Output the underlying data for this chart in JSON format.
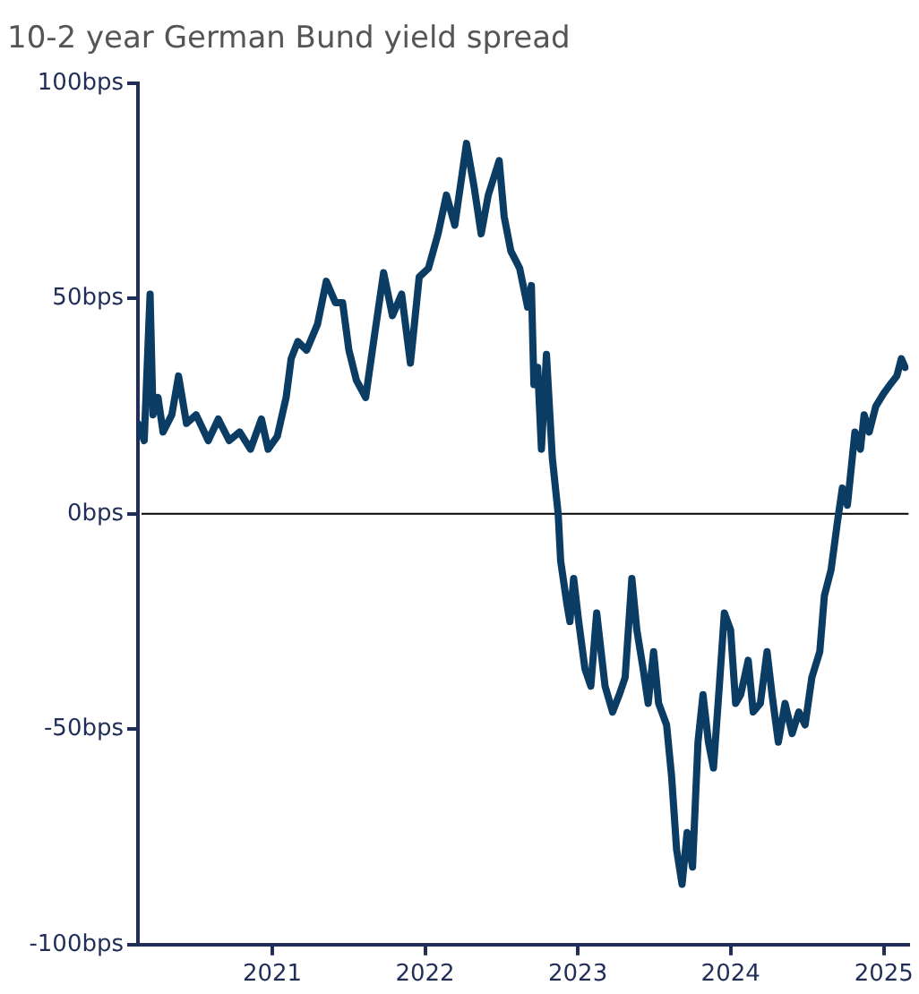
{
  "chart_data": {
    "type": "line",
    "title": "10-2 year German Bund yield spread",
    "x": [
      "2020-02-15",
      "2020-03-01",
      "2020-03-15",
      "2020-03-22",
      "2020-04-03",
      "2020-04-15",
      "2020-05-06",
      "2020-05-22",
      "2020-06-10",
      "2020-07-03",
      "2020-08-01",
      "2020-08-25",
      "2020-09-20",
      "2020-10-15",
      "2020-11-10",
      "2020-12-06",
      "2020-12-22",
      "2021-01-13",
      "2021-02-03",
      "2021-02-15",
      "2021-03-03",
      "2021-03-24",
      "2021-04-19",
      "2021-05-10",
      "2021-06-01",
      "2021-06-18",
      "2021-07-03",
      "2021-07-21",
      "2021-08-12",
      "2021-09-03",
      "2021-09-24",
      "2021-10-15",
      "2021-11-06",
      "2021-11-27",
      "2021-12-18",
      "2022-01-09",
      "2022-02-01",
      "2022-02-21",
      "2022-03-13",
      "2022-04-10",
      "2022-04-28",
      "2022-05-15",
      "2022-06-01",
      "2022-06-27",
      "2022-07-09",
      "2022-07-25",
      "2022-08-15",
      "2022-09-03",
      "2022-09-12",
      "2022-09-18",
      "2022-09-27",
      "2022-10-06",
      "2022-10-18",
      "2022-11-01",
      "2022-11-15",
      "2022-11-21",
      "2022-12-06",
      "2022-12-13",
      "2022-12-22",
      "2023-01-03",
      "2023-01-18",
      "2023-02-01",
      "2023-02-15",
      "2023-03-07",
      "2023-03-25",
      "2023-04-10",
      "2023-04-24",
      "2023-05-10",
      "2023-05-22",
      "2023-06-06",
      "2023-06-18",
      "2023-07-01",
      "2023-07-13",
      "2023-08-01",
      "2023-08-13",
      "2023-08-25",
      "2023-09-07",
      "2023-09-19",
      "2023-10-02",
      "2023-10-15",
      "2023-10-27",
      "2023-11-09",
      "2023-11-21",
      "2023-12-05",
      "2023-12-17",
      "2024-01-01",
      "2024-01-13",
      "2024-01-25",
      "2024-02-12",
      "2024-02-24",
      "2024-03-12",
      "2024-03-28",
      "2024-04-09",
      "2024-04-24",
      "2024-05-10",
      "2024-05-27",
      "2024-06-12",
      "2024-06-27",
      "2024-07-13",
      "2024-08-01",
      "2024-08-12",
      "2024-08-28",
      "2024-09-12",
      "2024-09-24",
      "2024-10-06",
      "2024-10-24",
      "2024-11-06",
      "2024-11-15",
      "2024-11-27",
      "2024-12-13",
      "2025-01-01",
      "2025-01-16",
      "2025-02-01",
      "2025-02-12",
      "2025-02-21"
    ],
    "series": [
      {
        "color": "#0b3c64",
        "values": [
          21,
          17,
          51,
          23,
          27,
          19,
          23,
          32,
          21,
          23,
          17,
          22,
          17,
          19,
          15,
          22,
          15,
          18,
          27,
          36,
          40,
          38,
          44,
          54,
          49,
          49,
          38,
          31,
          27,
          42,
          56,
          46,
          51,
          35,
          55,
          57,
          65,
          74,
          67,
          86,
          76,
          65,
          74,
          82,
          69,
          61,
          57,
          48,
          53,
          30,
          34,
          15,
          37,
          13,
          0,
          -11,
          -21,
          -25,
          -15,
          -25,
          -36,
          -40,
          -23,
          -40,
          -46,
          -42,
          -38,
          -15,
          -27,
          -36,
          -44,
          -32,
          -44,
          -49,
          -61,
          -78,
          -86,
          -74,
          -82,
          -53,
          -42,
          -53,
          -59,
          -40,
          -23,
          -27,
          -44,
          -42,
          -34,
          -46,
          -44,
          -32,
          -42,
          -53,
          -44,
          -51,
          -46,
          -49,
          -38,
          -32,
          -19,
          -13,
          -2,
          6,
          2,
          19,
          15,
          23,
          19,
          25,
          28,
          30,
          32,
          36,
          34
        ]
      }
    ],
    "xlim": [
      "2020-02-15",
      "2025-03-01"
    ],
    "xticks": [
      "2021",
      "2022",
      "2023",
      "2024",
      "2025"
    ],
    "ylim": [
      -100,
      100
    ],
    "yticks": [
      {
        "value": -100,
        "label": "-100bps"
      },
      {
        "value": -50,
        "label": "-50bps"
      },
      {
        "value": 0,
        "label": "0bps"
      },
      {
        "value": 50,
        "label": "50bps"
      },
      {
        "value": 100,
        "label": "100bps"
      }
    ],
    "ref_lines": [
      {
        "axis": "y",
        "value": 0,
        "color": "#000000"
      }
    ],
    "grid": false,
    "legend": false,
    "marker": "none",
    "line_style": "solid"
  }
}
